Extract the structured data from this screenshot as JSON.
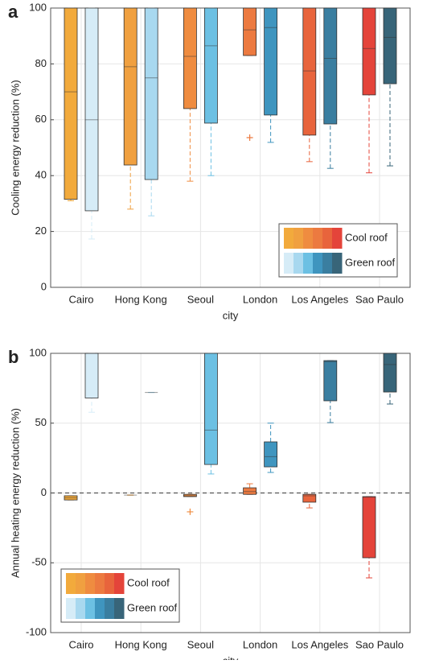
{
  "chart_data": [
    {
      "type": "box",
      "panel": "a",
      "ylabel": "Cooling energy reduction (%)",
      "xlabel": "city",
      "categories": [
        "Cairo",
        "Hong Kong",
        "Seoul",
        "London",
        "Los Angeles",
        "Sao Paulo"
      ],
      "ylim": [
        0,
        100
      ],
      "yticks": [
        0,
        20,
        40,
        60,
        80,
        100
      ],
      "grid": true,
      "legend": "lower right",
      "series": [
        {
          "name": "Cool roof",
          "colors": [
            "#f2aa3c",
            "#f0a040",
            "#ef8c40",
            "#ec7a40",
            "#e8643c",
            "#e4443a"
          ],
          "min": [
            31,
            28,
            38,
            83,
            45,
            41
          ],
          "q1": [
            31.5,
            43.8,
            64,
            83,
            54.5,
            68.9
          ],
          "median": [
            70,
            79,
            82.7,
            92.2,
            77.5,
            85.5
          ],
          "q3": [
            100,
            100,
            100,
            100,
            100,
            100
          ],
          "max": [
            100,
            100,
            100,
            100,
            100,
            100
          ],
          "outliers": [
            [],
            [],
            [],
            [
              53.6
            ],
            [],
            []
          ]
        },
        {
          "name": "Green roof",
          "colors": [
            "#d6ecf7",
            "#a8d8ef",
            "#6cc0e3",
            "#3f95bf",
            "#3a7ea0",
            "#386579"
          ],
          "min": [
            17.3,
            25.6,
            40,
            51.9,
            42.6,
            43.5
          ],
          "q1": [
            27.4,
            38.6,
            58.8,
            61.7,
            58.5,
            72.9
          ],
          "median": [
            60,
            75,
            86.5,
            93,
            82,
            89.5
          ],
          "q3": [
            100,
            100,
            100,
            100,
            100,
            100
          ],
          "max": [
            100,
            100,
            100,
            100,
            100,
            100
          ],
          "outliers": [
            [],
            [],
            [],
            [],
            [],
            []
          ]
        }
      ]
    },
    {
      "type": "box",
      "panel": "b",
      "ylabel": "Annual heating energy reduction (%)",
      "xlabel": "city",
      "categories": [
        "Cairo",
        "Hong Kong",
        "Seoul",
        "London",
        "Los Angeles",
        "Sao Paulo"
      ],
      "ylim": [
        -100,
        100
      ],
      "yticks": [
        -100,
        -50,
        0,
        50,
        100
      ],
      "grid": true,
      "zero_line": true,
      "legend": "lower left",
      "series": [
        {
          "name": "Cool roof",
          "colors": [
            "#f2aa3c",
            "#f0a040",
            "#ef8c40",
            "#ec7a40",
            "#e8643c",
            "#e4443a"
          ],
          "min": [
            -5,
            -1.5,
            -2.6,
            -1,
            -10.7,
            -60.8
          ],
          "q1": [
            -5,
            -1.5,
            -2.6,
            -1,
            -6.6,
            -46.4
          ],
          "median": [
            -3.5,
            -1.5,
            -2,
            1,
            -2,
            -3
          ],
          "q3": [
            -2,
            -1.5,
            -1,
            3.7,
            -1,
            -2.6
          ],
          "max": [
            -2,
            -1.5,
            -1,
            6.6,
            -1,
            -2.6
          ],
          "outliers": [
            [],
            [],
            [
              -13.5
            ],
            [],
            [],
            []
          ]
        },
        {
          "name": "Green roof",
          "colors": [
            "#d6ecf7",
            "#a8d8ef",
            "#6cc0e3",
            "#3f95bf",
            "#3a7ea0",
            "#386579"
          ],
          "min": [
            57.8,
            72,
            13.6,
            14.7,
            50.4,
            63.7
          ],
          "q1": [
            68,
            72,
            20.4,
            18.7,
            66,
            72.3
          ],
          "median": [
            100,
            72,
            45,
            26,
            94,
            92
          ],
          "q3": [
            100,
            72,
            100,
            36.6,
            94.8,
            100
          ],
          "max": [
            100,
            72,
            100,
            50,
            94.8,
            100
          ],
          "outliers": [
            [],
            [],
            [],
            [],
            [],
            []
          ]
        }
      ]
    }
  ]
}
